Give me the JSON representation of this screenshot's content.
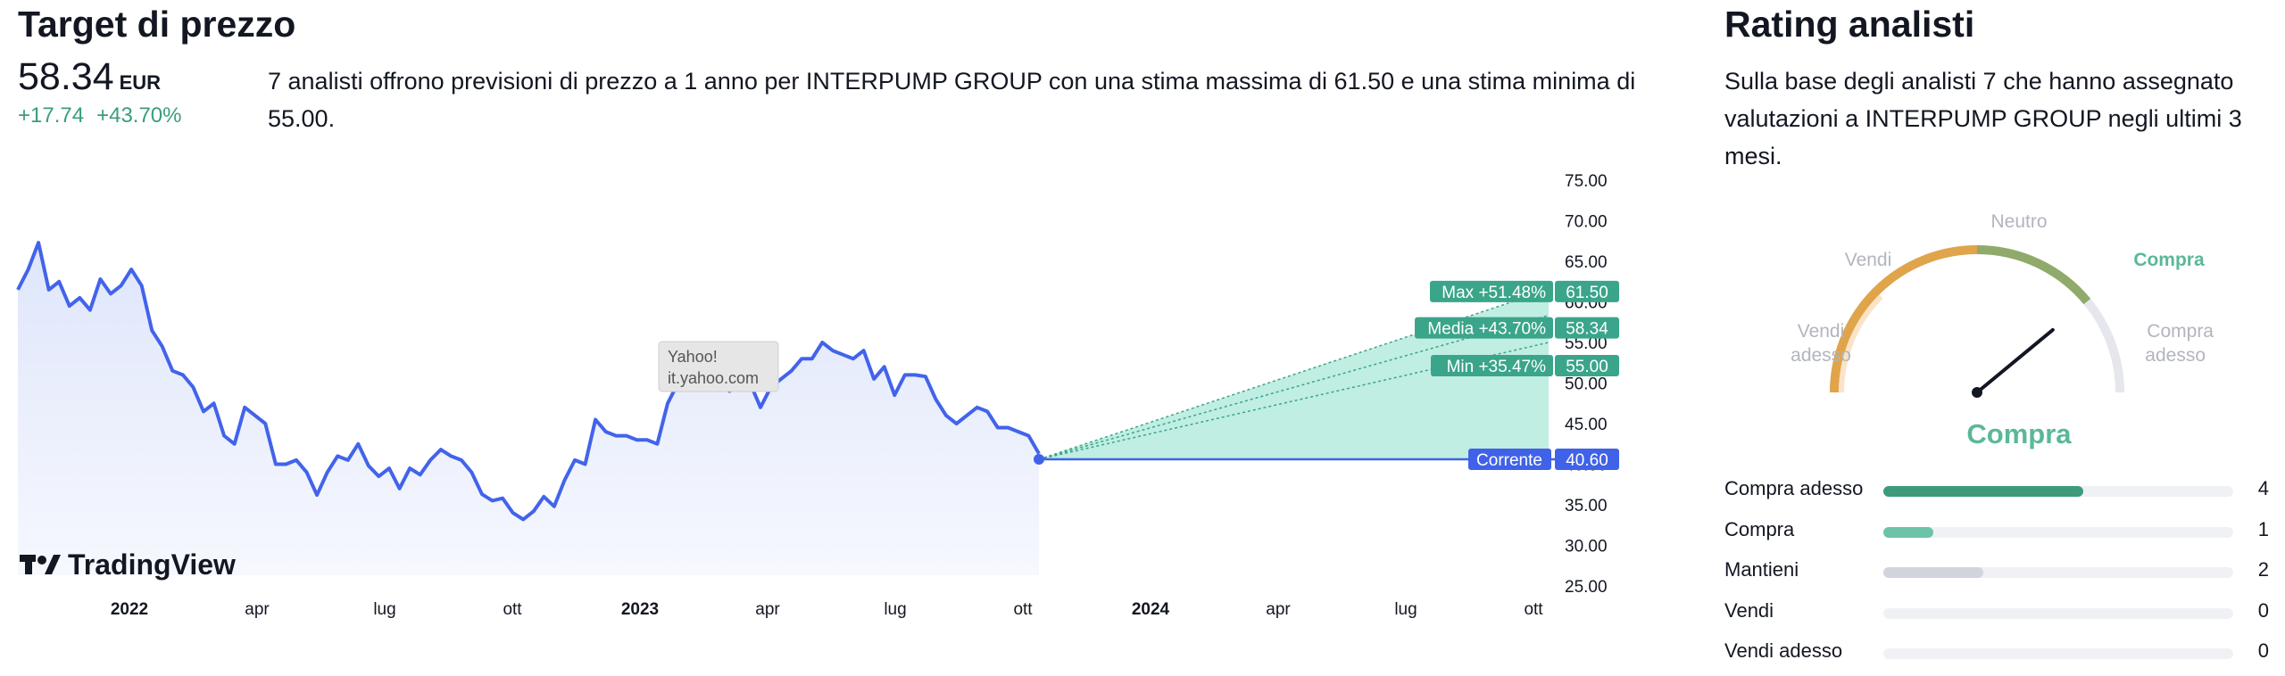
{
  "left": {
    "title": "Target di prezzo",
    "price": "58.34",
    "currency": "EUR",
    "change_abs": "+17.74",
    "change_pct": "+43.70%",
    "description": "7 analisti offrono previsioni di prezzo a 1 anno per INTERPUMP GROUP con una stima massima di 61.50 e una stima minima di 55.00."
  },
  "chart_data": {
    "type": "line",
    "y_ticks": [
      "75.00",
      "70.00",
      "65.00",
      "60.00",
      "55.00",
      "50.00",
      "45.00",
      "40.00",
      "35.00",
      "30.00",
      "25.00"
    ],
    "ylim": [
      25,
      75
    ],
    "x_ticks": [
      {
        "label": "2022",
        "bold": true
      },
      {
        "label": "apr",
        "bold": false
      },
      {
        "label": "lug",
        "bold": false
      },
      {
        "label": "ott",
        "bold": false
      },
      {
        "label": "2023",
        "bold": true
      },
      {
        "label": "apr",
        "bold": false
      },
      {
        "label": "lug",
        "bold": false
      },
      {
        "label": "ott",
        "bold": false
      },
      {
        "label": "2024",
        "bold": true
      },
      {
        "label": "apr",
        "bold": false
      },
      {
        "label": "lug",
        "bold": false
      },
      {
        "label": "ott",
        "bold": false
      }
    ],
    "series": [
      {
        "values": [
          61.5,
          64,
          67.3,
          61.5,
          62.5,
          59.5,
          60.5,
          59,
          62.8,
          61,
          62,
          64,
          62,
          56.5,
          54.5,
          51.5,
          51,
          49.5,
          46.5,
          47.5,
          43.5,
          42.5,
          47,
          46,
          45,
          40,
          40,
          40.5,
          39,
          36.2,
          39,
          41,
          40.5,
          42.5,
          39.8,
          38.5,
          39.5,
          37,
          39.5,
          38.7,
          40.5,
          41.8,
          41,
          40.5,
          39,
          36.3,
          35.5,
          35.8,
          34,
          33.2,
          34.2,
          36,
          34.8,
          38,
          40.5,
          40,
          45.5,
          44,
          43.5,
          43.5,
          43,
          43,
          42.5,
          47.5,
          50,
          49.5,
          50.5,
          50,
          50,
          49,
          50,
          50,
          47,
          49.5,
          50.5,
          51.5,
          53,
          53,
          55,
          54,
          53.5,
          53,
          54,
          50.5,
          52,
          48.5,
          51,
          51,
          50.8,
          48,
          46,
          45,
          46,
          47,
          46.5,
          44.5,
          44.5,
          44,
          43.5,
          41.3
        ]
      }
    ],
    "targets": [
      {
        "label": "Max +51.48%",
        "value": 61.5,
        "value_label": "61.50"
      },
      {
        "label": "Media +43.70%",
        "value": 58.34,
        "value_label": "58.34"
      },
      {
        "label": "Min +35.47%",
        "value": 55.0,
        "value_label": "55.00"
      }
    ],
    "current": {
      "label": "Corrente",
      "value": 40.6,
      "value_label": "40.60"
    },
    "tooltip": [
      "Yahoo!",
      "it.yahoo.com"
    ],
    "watermark": "TradingView",
    "colors": {
      "line": "#4263eb",
      "target": "#3aa58a",
      "current": "#3f62e8",
      "area": "#b9ece0"
    }
  },
  "right": {
    "title": "Rating analisti",
    "description": "Sulla base degli analisti 7 che hanno assegnato valutazioni a INTERPUMP GROUP negli ultimi 3 mesi.",
    "gauge": {
      "labels": {
        "strong_sell": [
          "Vendi",
          "adesso"
        ],
        "sell": "Vendi",
        "neutral": "Neutro",
        "buy": "Compra",
        "strong_buy": [
          "Compra",
          "adesso"
        ]
      },
      "result": "Compra",
      "needle_fraction": 0.78
    },
    "ratings": [
      {
        "label": "Compra adesso",
        "count": "4",
        "value": 4,
        "color": "#3d9b7c"
      },
      {
        "label": "Compra",
        "count": "1",
        "value": 1,
        "color": "#6cc3a7"
      },
      {
        "label": "Mantieni",
        "count": "2",
        "value": 2,
        "color": "#d1d4dc"
      },
      {
        "label": "Vendi",
        "count": "0",
        "value": 0,
        "color": "#e0e3eb"
      },
      {
        "label": "Vendi adesso",
        "count": "0",
        "value": 0,
        "color": "#e0e3eb"
      }
    ],
    "ratings_max": 7
  }
}
